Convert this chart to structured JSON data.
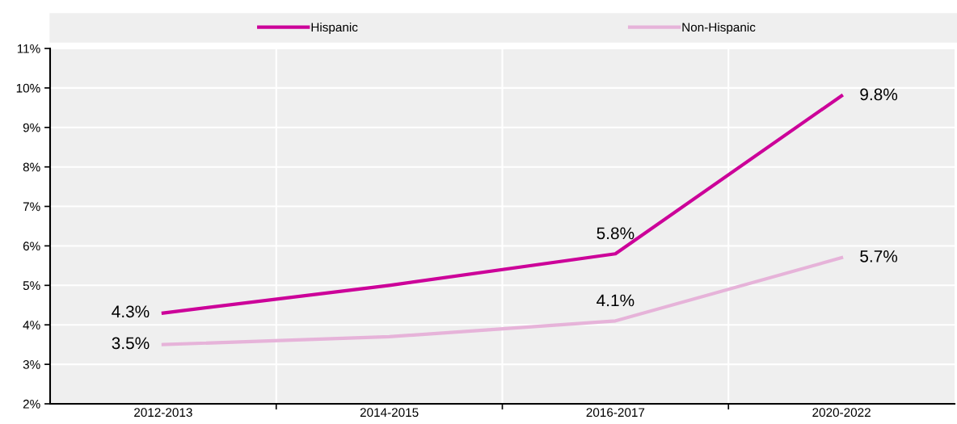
{
  "chart_data": {
    "type": "line",
    "categories": [
      "2012-2013",
      "2014-2015",
      "2016-2017",
      "2020-2022"
    ],
    "series": [
      {
        "name": "Hispanic",
        "color": "#cc0099",
        "values": [
          4.3,
          5.0,
          5.8,
          9.8
        ],
        "value_labels": [
          "4.3%",
          null,
          "5.8%",
          "9.8%"
        ]
      },
      {
        "name": "Non-Hispanic",
        "color": "#e6b3d9",
        "values": [
          3.5,
          3.7,
          4.1,
          5.7
        ],
        "value_labels": [
          "3.5%",
          null,
          "4.1%",
          "5.7%"
        ]
      }
    ],
    "ylim": [
      2,
      11
    ],
    "yticks": [
      {
        "value": 2,
        "label": "2%"
      },
      {
        "value": 3,
        "label": "3%"
      },
      {
        "value": 4,
        "label": "4%"
      },
      {
        "value": 5,
        "label": "5%"
      },
      {
        "value": 6,
        "label": "6%"
      },
      {
        "value": 7,
        "label": "7%"
      },
      {
        "value": 8,
        "label": "8%"
      },
      {
        "value": 9,
        "label": "9%"
      },
      {
        "value": 10,
        "label": "10%"
      },
      {
        "value": 11,
        "label": "11%"
      }
    ],
    "grid": true,
    "legend": "top",
    "marker": "none",
    "line_style": "solid"
  }
}
